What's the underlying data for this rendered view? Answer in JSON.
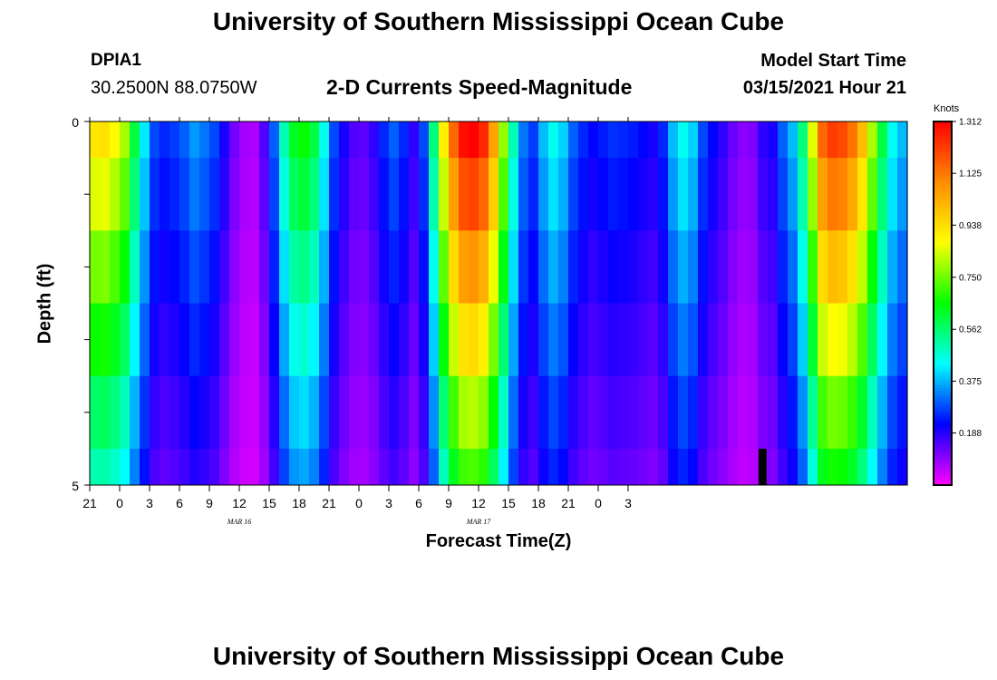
{
  "header": {
    "title": "University of Southern Mississippi Ocean Cube",
    "station_id": "DPIA1",
    "station_coords": "30.2500N 88.0750W",
    "subtitle": "2-D Currents Speed-Magnitude",
    "model_label": "Model Start Time",
    "model_time": "03/15/2021 Hour 21"
  },
  "footer": {
    "title": "University of Southern Mississippi Ocean Cube"
  },
  "chart_data": {
    "type": "heatmap",
    "title": "2-D Currents Speed-Magnitude",
    "xlabel": "Forecast Time(Z)",
    "ylabel": "Depth (ft)",
    "colorbar_unit": "Knots",
    "x_tick_labels": [
      "21",
      "0",
      "3",
      "6",
      "9",
      "12",
      "15",
      "18",
      "21",
      "0",
      "3",
      "6",
      "9",
      "12",
      "15",
      "18",
      "21",
      "0",
      "3"
    ],
    "date_labels": [
      {
        "label": "MAR 16",
        "at_hour": 15
      },
      {
        "label": "MAR 17",
        "at_hour": 39
      }
    ],
    "y_tick_labels": [
      "0",
      "5"
    ],
    "ylim": [
      0,
      5
    ],
    "y_minor_ticks": 5,
    "colorbar_ticks": [
      "1.312",
      "1.125",
      "0.938",
      "0.750",
      "0.562",
      "0.375",
      "0.188"
    ],
    "colorbar_tick_values": [
      1.312,
      1.125,
      0.938,
      0.75,
      0.562,
      0.375,
      0.188
    ],
    "vmin": 0.0,
    "vmax": 1.312,
    "colormap": [
      "#ff00ff",
      "#0000ff",
      "#00ffff",
      "#00ff00",
      "#ffff00",
      "#ff8c00",
      "#ff0000"
    ],
    "depths": [
      0.25,
      1.25,
      2.25,
      3.25,
      4.25,
      4.75
    ],
    "hours_start": 21,
    "hours_step": 1,
    "surface_profile": [
      0.92,
      0.93,
      0.88,
      0.8,
      0.6,
      0.42,
      0.28,
      0.25,
      0.27,
      0.3,
      0.35,
      0.32,
      0.28,
      0.2,
      0.12,
      0.08,
      0.07,
      0.15,
      0.3,
      0.5,
      0.63,
      0.66,
      0.6,
      0.45,
      0.28,
      0.2,
      0.15,
      0.14,
      0.18,
      0.25,
      0.3,
      0.25,
      0.18,
      0.28,
      0.55,
      0.9,
      1.15,
      1.29,
      1.31,
      1.25,
      1.05,
      0.78,
      0.5,
      0.32,
      0.27,
      0.38,
      0.45,
      0.4,
      0.3,
      0.25,
      0.22,
      0.24,
      0.26,
      0.25,
      0.24,
      0.22,
      0.2,
      0.25,
      0.38,
      0.45,
      0.4,
      0.28,
      0.22,
      0.18,
      0.13,
      0.1,
      0.11,
      0.18,
      0.2,
      0.3,
      0.38,
      0.55,
      0.85,
      1.15,
      1.22,
      1.2,
      1.13,
      1.0,
      0.8,
      0.6,
      0.45,
      0.38
    ],
    "depth_factors": [
      1.0,
      0.92,
      0.82,
      0.72,
      0.62,
      0.55
    ],
    "black_marker": {
      "hour_index": 67,
      "depth_from": 4.5,
      "depth_to": 5.0
    }
  }
}
